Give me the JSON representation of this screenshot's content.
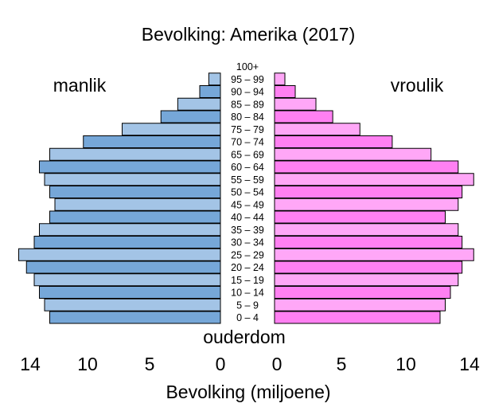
{
  "chart_data": {
    "type": "bar",
    "title": "Bevolking: Amerika (2017)",
    "xlabel": "Bevolking (miljoene)",
    "center_label": "ouderdom",
    "left_label": "manlik",
    "right_label": "vroulik",
    "categories": [
      "0 – 4",
      "5 – 9",
      "10 – 14",
      "15 – 19",
      "20 – 24",
      "25 – 29",
      "30 – 34",
      "35 – 39",
      "40 – 44",
      "45 – 49",
      "50 – 54",
      "55 – 59",
      "60 – 64",
      "65 – 69",
      "70 – 74",
      "75 – 79",
      "80 – 84",
      "85 – 89",
      "90 – 94",
      "95 – 99",
      "100+"
    ],
    "series": [
      {
        "name": "manlik",
        "values": [
          13.2,
          13.6,
          14.0,
          14.4,
          15.0,
          15.6,
          14.4,
          14.0,
          13.2,
          12.8,
          13.2,
          13.6,
          14.0,
          13.2,
          10.6,
          7.6,
          4.6,
          3.3,
          1.6,
          0.9,
          0.0
        ]
      },
      {
        "name": "vroulik",
        "values": [
          12.8,
          13.2,
          13.6,
          14.2,
          14.5,
          15.4,
          14.5,
          14.2,
          13.2,
          14.2,
          14.5,
          15.4,
          14.2,
          12.1,
          9.1,
          6.6,
          4.5,
          3.2,
          1.6,
          0.8,
          0.0
        ]
      }
    ],
    "xlim": [
      0,
      15.6
    ],
    "left_ticks": [
      "14",
      "10",
      "5",
      "0"
    ],
    "right_ticks": [
      "0",
      "5",
      "10",
      "14"
    ],
    "colors": {
      "male_dark": "#76a7d8",
      "male_light": "#a3c4e6",
      "female_dark": "#ff80f2",
      "female_light": "#ffa7f7",
      "outline": "#000000"
    }
  }
}
